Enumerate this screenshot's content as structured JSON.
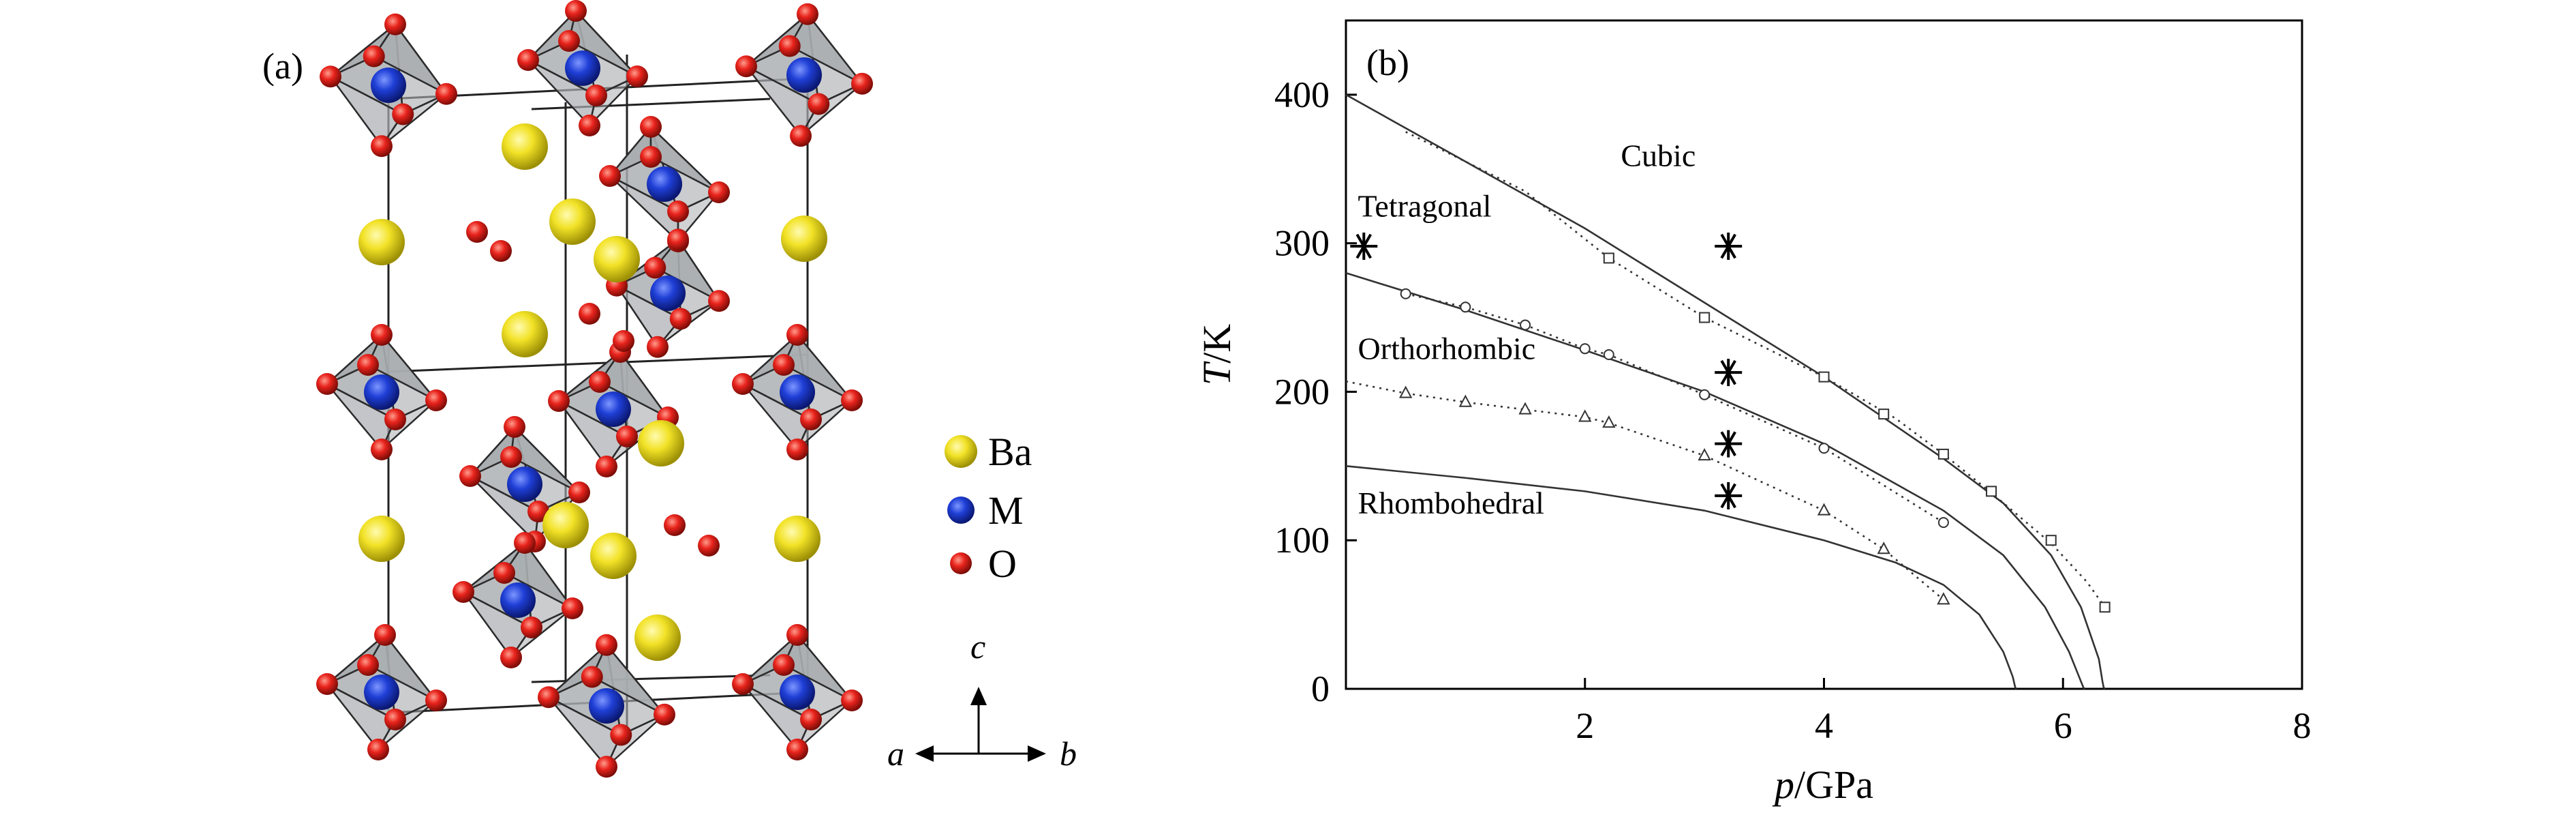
{
  "panel_a": {
    "label": "(a)",
    "legend": [
      {
        "symbol": "Ba",
        "label": "Ba",
        "color": "#f2e227"
      },
      {
        "symbol": "M",
        "label": "M",
        "color": "#1f3fd6"
      },
      {
        "symbol": "O",
        "label": "O",
        "color": "#e8231c"
      }
    ],
    "axes": {
      "c": "c",
      "a": "a",
      "b": "b"
    },
    "colors": {
      "octahedron": "#a9adb0",
      "octahedron_edge": "#2b2b2b"
    }
  },
  "chart_data": {
    "type": "line",
    "panel_label": "(b)",
    "xlabel": {
      "var": "p",
      "unit": "/GPa"
    },
    "ylabel": {
      "var": "T",
      "unit": "/K"
    },
    "xlim": [
      0,
      8
    ],
    "ylim": [
      0,
      450
    ],
    "xticks": [
      2,
      4,
      6,
      8
    ],
    "yticks": [
      0,
      100,
      200,
      300,
      400
    ],
    "phase_labels": [
      {
        "text": "Cubic",
        "p": 2.3,
        "T": 352
      },
      {
        "text": "Tetragonal",
        "p": 0.1,
        "T": 318
      },
      {
        "text": "Orthorhombic",
        "p": 0.1,
        "T": 222
      },
      {
        "text": "Rhombohedral",
        "p": 0.1,
        "T": 118
      }
    ],
    "series": [
      {
        "name": "C-T solid boundary",
        "style": "solid",
        "x": [
          0,
          1,
          2,
          3,
          4,
          5,
          5.5,
          5.9,
          6.15,
          6.3,
          6.33,
          6.34,
          6.35
        ],
        "y": [
          400,
          355,
          310,
          260,
          210,
          155,
          125,
          90,
          55,
          20,
          5,
          1,
          0
        ]
      },
      {
        "name": "C-T dotted fit",
        "style": "dotted",
        "x": [
          0.5,
          1.5,
          2.2,
          3,
          4,
          4.6,
          5,
          5.4,
          5.9,
          6.2,
          6.35
        ],
        "y": [
          375,
          335,
          290,
          250,
          210,
          182,
          158,
          132,
          98,
          72,
          55
        ]
      },
      {
        "name": "T-O solid boundary",
        "style": "solid",
        "x": [
          0,
          1,
          2,
          3,
          4,
          5,
          5.5,
          5.85,
          6.05,
          6.15,
          6.17,
          6.18
        ],
        "y": [
          280,
          255,
          228,
          200,
          165,
          120,
          90,
          55,
          25,
          5,
          1,
          0
        ]
      },
      {
        "name": "T-O dotted fit",
        "style": "dotted",
        "x": [
          0.5,
          1,
          1.5,
          2,
          2.2,
          3,
          4,
          5
        ],
        "y": [
          266,
          257,
          245,
          229,
          225,
          198,
          162,
          112
        ]
      },
      {
        "name": "O-R solid boundary",
        "style": "solid",
        "x": [
          0,
          1,
          2,
          3,
          4,
          4.6,
          5,
          5.3,
          5.5,
          5.58,
          5.6,
          5.61
        ],
        "y": [
          150,
          142,
          133,
          120,
          100,
          85,
          70,
          50,
          25,
          8,
          1,
          0
        ]
      },
      {
        "name": "O-R dotted fit",
        "style": "dotted",
        "x": [
          0,
          0.5,
          1,
          1.5,
          2,
          2.2,
          3,
          4,
          4.5,
          5
        ],
        "y": [
          207,
          199,
          193,
          188,
          183,
          179,
          157,
          120,
          94,
          60
        ]
      }
    ],
    "markers": [
      {
        "shape": "square",
        "points": [
          [
            2.2,
            290
          ],
          [
            3,
            250
          ],
          [
            4,
            210
          ],
          [
            4.5,
            185
          ],
          [
            5,
            158
          ],
          [
            5.4,
            133
          ],
          [
            5.9,
            100
          ],
          [
            6.35,
            55
          ]
        ]
      },
      {
        "shape": "circle",
        "points": [
          [
            0.5,
            266
          ],
          [
            1,
            257
          ],
          [
            1.5,
            245
          ],
          [
            2,
            229
          ],
          [
            2.2,
            225
          ],
          [
            3,
            198
          ],
          [
            4,
            162
          ],
          [
            5,
            112
          ]
        ]
      },
      {
        "shape": "triangle",
        "points": [
          [
            0.5,
            199
          ],
          [
            1,
            193
          ],
          [
            1.5,
            188
          ],
          [
            2,
            183
          ],
          [
            2.2,
            179
          ],
          [
            3,
            157
          ],
          [
            4,
            120
          ],
          [
            4.5,
            94
          ],
          [
            5,
            60
          ]
        ]
      },
      {
        "shape": "asterisk",
        "points": [
          [
            0.15,
            298
          ],
          [
            3.2,
            298
          ],
          [
            3.2,
            213
          ],
          [
            3.2,
            165
          ],
          [
            3.2,
            130
          ]
        ]
      }
    ]
  }
}
